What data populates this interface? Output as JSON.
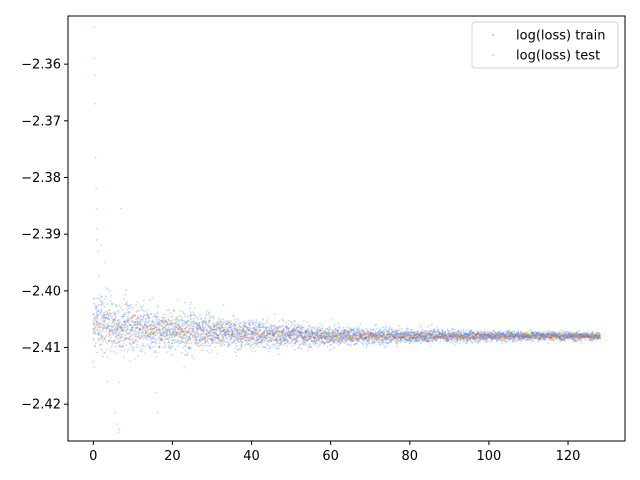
{
  "chart_data": {
    "type": "scatter",
    "title": "",
    "xlabel": "",
    "ylabel": "",
    "xlim": [
      -6.4,
      134.4
    ],
    "ylim": [
      -2.4265,
      -2.3515
    ],
    "x_ticks": [
      0,
      20,
      40,
      60,
      80,
      100,
      120
    ],
    "y_ticks": [
      -2.36,
      -2.37,
      -2.38,
      -2.39,
      -2.4,
      -2.41,
      -2.42
    ],
    "x_tick_labels": [
      "0",
      "20",
      "40",
      "60",
      "80",
      "100",
      "120"
    ],
    "y_tick_labels": [
      "−2.36",
      "−2.37",
      "−2.38",
      "−2.39",
      "−2.40",
      "−2.41",
      "−2.42"
    ],
    "grid": false,
    "legend_position": "top-right",
    "series": [
      {
        "name": "log(loss) train",
        "color": "#1f77ff",
        "center_profile": {
          "x": [
            0,
            5,
            10,
            20,
            40,
            60,
            80,
            100,
            128
          ],
          "y": [
            -2.405,
            -2.406,
            -2.4065,
            -2.407,
            -2.4075,
            -2.408,
            -2.408,
            -2.408,
            -2.408
          ]
        },
        "spread_profile": {
          "x": [
            0,
            5,
            10,
            20,
            40,
            60,
            80,
            100,
            128
          ],
          "y": [
            0.005,
            0.0045,
            0.004,
            0.0032,
            0.0022,
            0.0015,
            0.0011,
            0.0008,
            0.0006
          ]
        },
        "outliers": [
          [
            0.2,
            -2.3535
          ],
          [
            0.3,
            -2.359
          ],
          [
            0.4,
            -2.362
          ],
          [
            0.5,
            -2.367
          ],
          [
            0.6,
            -2.3765
          ],
          [
            0.7,
            -2.382
          ],
          [
            0.8,
            -2.3855
          ],
          [
            0.9,
            -2.389
          ],
          [
            1.0,
            -2.391
          ],
          [
            1.2,
            -2.393
          ],
          [
            2.0,
            -2.392
          ],
          [
            3.0,
            -2.395
          ],
          [
            5.5,
            -2.4215
          ],
          [
            6.0,
            -2.4235
          ],
          [
            6.3,
            -2.425
          ],
          [
            6.5,
            -2.4245
          ],
          [
            7.0,
            -2.3855
          ],
          [
            15.8,
            -2.418
          ],
          [
            16.2,
            -2.4215
          ]
        ]
      },
      {
        "name": "log(loss) test",
        "color": "#ff7f0e",
        "center_profile": {
          "x": [
            0,
            10,
            20,
            40,
            60,
            80,
            100,
            128
          ],
          "y": [
            -2.406,
            -2.407,
            -2.4072,
            -2.4078,
            -2.408,
            -2.408,
            -2.408,
            -2.408
          ]
        },
        "spread_profile": {
          "x": [
            0,
            10,
            20,
            40,
            60,
            80,
            100,
            128
          ],
          "y": [
            0.0035,
            0.003,
            0.0025,
            0.0017,
            0.0011,
            0.0008,
            0.0006,
            0.0005
          ]
        }
      }
    ]
  }
}
